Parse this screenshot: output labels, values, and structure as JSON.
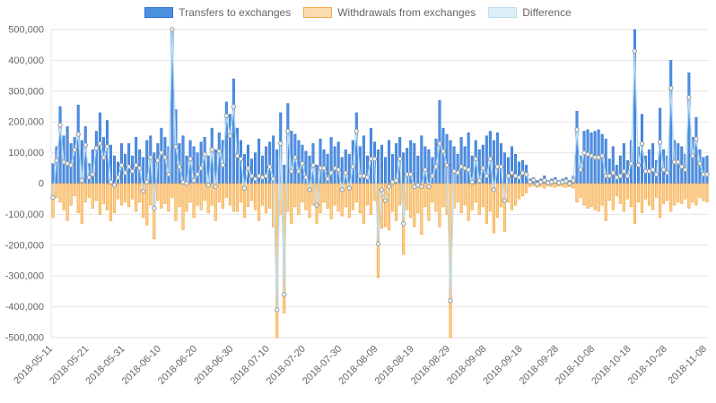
{
  "legend": {
    "items": [
      {
        "label": "Transfers to exchanges",
        "fill": "#4d90e2",
        "border": "#2f6fd0"
      },
      {
        "label": "Withdrawals from exchanges",
        "fill": "#fbdcae",
        "border": "#f5a947"
      },
      {
        "label": "Difference",
        "fill": "#ddf0fa",
        "border": "#b9ddf2"
      }
    ]
  },
  "colors": {
    "transfers_fill": "#4d90e2",
    "transfers_border": "#2f6fd0",
    "withdrawals_fill": "#fbcf8e",
    "withdrawals_border": "#f5a947",
    "difference_line": "#b9ddf2",
    "difference_point_fill": "#e8f4fb",
    "difference_point_border": "#9b9b9b",
    "gridline": "#e6e6e6",
    "zero_line": "#c8c8c8",
    "tick_text": "#666666"
  },
  "chart_data": {
    "type": "bar",
    "title": "",
    "x_start": "2018-05-11",
    "x_end": "2018-11-08",
    "tick_labels": [
      "2018-05-11",
      "2018-05-21",
      "2018-05-31",
      "2018-06-10",
      "2018-06-20",
      "2018-06-30",
      "2018-07-10",
      "2018-07-20",
      "2018-07-30",
      "2018-08-09",
      "2018-08-19",
      "2018-08-29",
      "2018-09-08",
      "2018-09-18",
      "2018-09-28",
      "2018-10-08",
      "2018-10-18",
      "2018-10-28",
      "2018-11-08"
    ],
    "tick_indices": [
      0,
      10,
      20,
      30,
      40,
      50,
      60,
      70,
      80,
      90,
      100,
      110,
      120,
      130,
      140,
      150,
      160,
      170,
      181
    ],
    "ylim": [
      -500000,
      500000
    ],
    "y_tick_step": 100000,
    "grid": "horizontal",
    "legend_position": "top",
    "series": [
      {
        "name": "Transfers to exchanges",
        "type": "bar",
        "values": [
          65000,
          120000,
          250000,
          155000,
          185000,
          130000,
          150000,
          255000,
          140000,
          185000,
          65000,
          110000,
          170000,
          230000,
          150000,
          205000,
          125000,
          90000,
          70000,
          130000,
          95000,
          130000,
          90000,
          150000,
          110000,
          85000,
          140000,
          155000,
          100000,
          130000,
          180000,
          150000,
          120000,
          555000,
          240000,
          130000,
          155000,
          90000,
          140000,
          120000,
          100000,
          135000,
          150000,
          90000,
          180000,
          110000,
          165000,
          140000,
          265000,
          225000,
          340000,
          180000,
          140000,
          95000,
          125000,
          80000,
          100000,
          145000,
          90000,
          120000,
          135000,
          155000,
          110000,
          230000,
          60000,
          260000,
          170000,
          160000,
          140000,
          125000,
          105000,
          90000,
          130000,
          60000,
          145000,
          110000,
          95000,
          150000,
          120000,
          135000,
          85000,
          110000,
          95000,
          140000,
          230000,
          120000,
          155000,
          90000,
          180000,
          135000,
          110000,
          125000,
          85000,
          140000,
          95000,
          130000,
          150000,
          100000,
          115000,
          140000,
          130000,
          90000,
          155000,
          120000,
          110000,
          85000,
          145000,
          270000,
          180000,
          160000,
          140000,
          120000,
          95000,
          150000,
          120000,
          165000,
          90000,
          140000,
          110000,
          125000,
          155000,
          170000,
          140000,
          165000,
          130000,
          100000,
          85000,
          120000,
          95000,
          70000,
          75000,
          60000,
          15000,
          20000,
          10000,
          15000,
          25000,
          10000,
          15000,
          20000,
          10000,
          15000,
          20000,
          10000,
          25000,
          235000,
          90000,
          170000,
          175000,
          165000,
          170000,
          175000,
          160000,
          145000,
          80000,
          120000,
          60000,
          90000,
          130000,
          75000,
          140000,
          560000,
          120000,
          225000,
          90000,
          110000,
          130000,
          75000,
          245000,
          110000,
          90000,
          400000,
          140000,
          130000,
          120000,
          95000,
          360000,
          150000,
          215000,
          110000,
          85000,
          90000
        ]
      },
      {
        "name": "Withdrawals from exchanges",
        "type": "bar",
        "values": [
          -110000,
          -45000,
          -60000,
          -85000,
          -120000,
          -70000,
          -40000,
          -95000,
          -130000,
          -60000,
          -45000,
          -80000,
          -55000,
          -100000,
          -65000,
          -85000,
          -120000,
          -95000,
          -50000,
          -70000,
          -60000,
          -75000,
          -50000,
          -90000,
          -60000,
          -110000,
          -135000,
          -70000,
          -180000,
          -55000,
          -80000,
          -65000,
          -90000,
          -45000,
          -120000,
          -75000,
          -150000,
          -90000,
          -60000,
          -110000,
          -70000,
          -85000,
          -55000,
          -95000,
          -70000,
          -120000,
          -60000,
          -80000,
          -45000,
          -70000,
          -90000,
          -90000,
          -60000,
          -110000,
          -75000,
          -55000,
          -85000,
          -120000,
          -70000,
          -95000,
          -80000,
          -140000,
          -520000,
          -100000,
          -420000,
          -90000,
          -130000,
          -75000,
          -100000,
          -60000,
          -85000,
          -110000,
          -70000,
          -130000,
          -95000,
          -60000,
          -80000,
          -115000,
          -70000,
          -90000,
          -105000,
          -75000,
          -110000,
          -85000,
          -60000,
          -95000,
          -130000,
          -70000,
          -100000,
          -55000,
          -305000,
          -145000,
          -140000,
          -150000,
          -90000,
          -120000,
          -70000,
          -230000,
          -85000,
          -110000,
          -140000,
          -95000,
          -165000,
          -75000,
          -120000,
          -60000,
          -90000,
          -140000,
          -75000,
          -100000,
          -520000,
          -80000,
          -60000,
          -95000,
          -70000,
          -120000,
          -85000,
          -60000,
          -100000,
          -75000,
          -130000,
          -90000,
          -160000,
          -110000,
          -75000,
          -155000,
          -60000,
          -85000,
          -70000,
          -50000,
          -40000,
          -30000,
          -10000,
          -8000,
          -12000,
          -10000,
          -15000,
          -8000,
          -10000,
          -12000,
          -8000,
          -10000,
          -12000,
          -10000,
          -15000,
          -60000,
          -45000,
          -70000,
          -80000,
          -75000,
          -85000,
          -90000,
          -70000,
          -120000,
          -55000,
          -85000,
          -40000,
          -65000,
          -90000,
          -50000,
          -75000,
          -130000,
          -60000,
          -95000,
          -50000,
          -70000,
          -85000,
          -45000,
          -110000,
          -65000,
          -55000,
          -90000,
          -70000,
          -60000,
          -65000,
          -50000,
          -80000,
          -60000,
          -70000,
          -45000,
          -55000,
          -60000
        ]
      },
      {
        "name": "Difference",
        "type": "line",
        "derivation": "transfers + withdrawals (net flow per day)"
      }
    ]
  }
}
